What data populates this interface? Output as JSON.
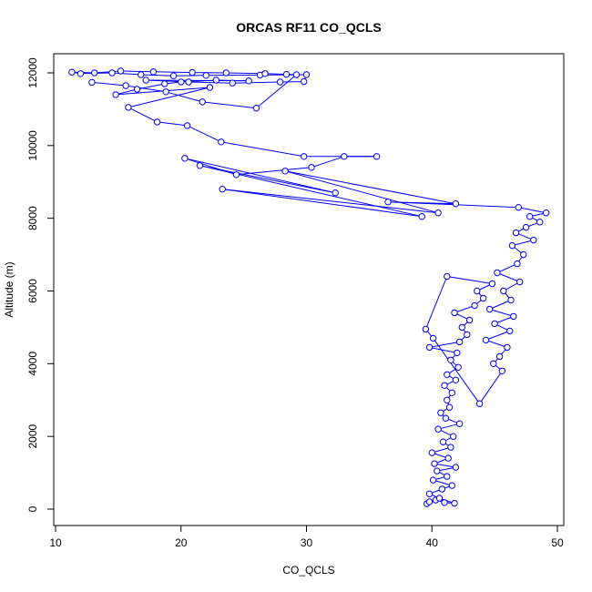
{
  "chart_data": {
    "type": "line",
    "title": "ORCAS RF11 CO_QCLS",
    "xlabel": "CO_QCLS",
    "ylabel": "Altitude (m)",
    "xlim": [
      10,
      50
    ],
    "ylim": [
      0,
      12000
    ],
    "x_ticks": [
      10,
      20,
      30,
      40,
      50
    ],
    "y_ticks": [
      0,
      2000,
      4000,
      6000,
      8000,
      10000,
      12000
    ],
    "grid": false,
    "color": "#0000ff",
    "marker": "open-circle",
    "series": [
      {
        "x": [
          39.6,
          39.8,
          40.3,
          41.0,
          41.8,
          40.6,
          39.8,
          40.8,
          41.6,
          40.1,
          41.2,
          40.4,
          41.9,
          40.2,
          41.3,
          40.0,
          41.5,
          40.9,
          41.7,
          40.5,
          42.2,
          41.1,
          40.7,
          41.4,
          41.2,
          41.6,
          41.0,
          41.9,
          41.2,
          42.1,
          41.5,
          42.0,
          39.8,
          42.2,
          42.8,
          42.4,
          43.0,
          41.8,
          43.4,
          44.1,
          43.6,
          44.8,
          41.2,
          39.5,
          40.1,
          43.8,
          45.6,
          44.9,
          45.4,
          46.0,
          44.3,
          46.2,
          45.0,
          46.5,
          44.6,
          46.3,
          45.7,
          47.0,
          45.2,
          46.8,
          47.3,
          46.4,
          48.1,
          46.7,
          47.5,
          48.6,
          47.8,
          49.1,
          46.9,
          36.5,
          41.9,
          28.3,
          40.5,
          23.3,
          39.2,
          21.5,
          32.3,
          20.3,
          24.4,
          30.4,
          33.0,
          35.6,
          29.8,
          23.2,
          20.5,
          18.1,
          15.8,
          22.3,
          14.8,
          16.5,
          18.7,
          20.0,
          22.8,
          25.4,
          17.2,
          20.6,
          24.1,
          27.9,
          29.8,
          30.0,
          26.3,
          22.0,
          19.4,
          16.8,
          14.5,
          12.0,
          11.3,
          13.1,
          15.2,
          17.8,
          20.9,
          23.6,
          26.7,
          28.4,
          29.2,
          26.0,
          21.7,
          18.8,
          15.6,
          12.9
        ],
        "y": [
          150,
          200,
          250,
          180,
          160,
          300,
          420,
          550,
          650,
          800,
          900,
          1050,
          1150,
          1250,
          1400,
          1550,
          1700,
          1850,
          2000,
          2200,
          2350,
          2500,
          2650,
          2800,
          3000,
          3200,
          3400,
          3550,
          3700,
          3900,
          4100,
          4300,
          4450,
          4600,
          4800,
          5000,
          5200,
          5400,
          5600,
          5800,
          6000,
          6200,
          6400,
          4950,
          4700,
          2900,
          3800,
          4000,
          4200,
          4450,
          4650,
          4900,
          5100,
          5300,
          5500,
          5750,
          6000,
          6250,
          6500,
          6750,
          7000,
          7250,
          7400,
          7600,
          7750,
          7900,
          8050,
          8150,
          8300,
          8450,
          8400,
          9300,
          8150,
          8800,
          8050,
          9450,
          8700,
          9650,
          9200,
          9400,
          9700,
          9700,
          9700,
          10100,
          10550,
          10650,
          11050,
          11600,
          11400,
          11550,
          11700,
          11750,
          11800,
          11780,
          11800,
          11750,
          11720,
          11750,
          11760,
          11950,
          11940,
          11930,
          11920,
          11950,
          12000,
          11980,
          12020,
          12000,
          12050,
          12030,
          12010,
          12000,
          11980,
          11960,
          11950,
          11030,
          11200,
          11480,
          11650,
          11740
        ]
      }
    ]
  }
}
